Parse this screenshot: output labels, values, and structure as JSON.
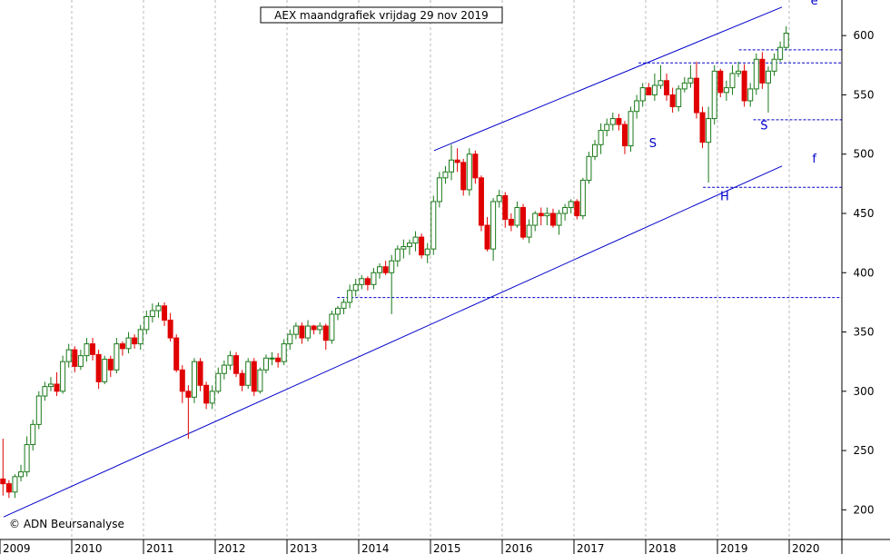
{
  "chart_data": {
    "type": "candlestick",
    "title": "AEX maandgrafiek vrijdag 29 nov 2019",
    "credit": "© ADN Beursanalyse",
    "x_tick_labels": [
      "2009",
      "2010",
      "2011",
      "2012",
      "2013",
      "2014",
      "2015",
      "2016",
      "2017",
      "2018",
      "2019",
      "2020"
    ],
    "y_tick_labels": [
      200,
      250,
      300,
      350,
      400,
      450,
      500,
      550,
      600
    ],
    "ylim": [
      175,
      630
    ],
    "x_start_year": 2009,
    "grid": "vertical dashed at year boundaries",
    "up_color": "#1a7a1a",
    "down_color": "#e00000",
    "line_color": "#0000cc",
    "months": {
      "open": [
        226,
        222,
        215,
        228,
        232,
        255,
        272,
        296,
        304,
        306,
        300,
        325,
        335,
        321,
        330,
        340,
        331,
        308,
        327,
        318,
        340,
        336,
        345,
        340,
        352,
        363,
        368,
        372,
        360,
        345,
        318,
        300,
        295,
        325,
        305,
        290,
        300,
        315,
        322,
        330,
        315,
        305,
        325,
        300,
        318,
        328,
        328,
        325,
        340,
        348,
        355,
        345,
        355,
        352,
        355,
        343,
        365,
        370,
        375,
        385,
        390,
        395,
        390,
        400,
        405,
        400,
        410,
        420,
        422,
        425,
        430,
        415,
        420,
        460,
        480,
        485,
        495,
        493,
        470,
        500,
        480,
        440,
        420,
        460,
        465,
        445,
        440,
        455,
        430,
        440,
        450,
        448,
        450,
        440,
        450,
        455,
        460,
        448,
        478,
        498,
        508,
        520,
        525,
        530,
        525,
        507,
        536,
        545,
        556,
        550,
        558,
        562,
        550,
        540,
        555,
        560,
        564,
        535,
        510,
        530,
        570,
        552,
        556,
        568,
        570,
        545,
        555,
        580,
        560,
        570,
        580,
        590
      ],
      "close": [
        222,
        215,
        228,
        232,
        255,
        272,
        296,
        304,
        306,
        300,
        325,
        335,
        321,
        330,
        340,
        331,
        308,
        327,
        318,
        340,
        336,
        345,
        340,
        352,
        363,
        368,
        372,
        360,
        345,
        318,
        300,
        295,
        325,
        305,
        290,
        300,
        315,
        322,
        330,
        315,
        305,
        325,
        300,
        318,
        328,
        328,
        325,
        340,
        348,
        355,
        345,
        355,
        352,
        355,
        343,
        365,
        370,
        375,
        385,
        390,
        395,
        390,
        400,
        405,
        400,
        410,
        420,
        422,
        425,
        430,
        415,
        420,
        460,
        480,
        485,
        495,
        493,
        470,
        500,
        480,
        440,
        420,
        460,
        465,
        445,
        440,
        455,
        430,
        440,
        450,
        448,
        450,
        440,
        450,
        455,
        460,
        448,
        478,
        498,
        508,
        520,
        525,
        530,
        525,
        507,
        536,
        545,
        556,
        550,
        558,
        562,
        550,
        540,
        555,
        560,
        564,
        535,
        510,
        530,
        570,
        552,
        556,
        568,
        570,
        545,
        555,
        580,
        560,
        570,
        580,
        590,
        602
      ],
      "high": [
        260,
        225,
        230,
        238,
        262,
        276,
        300,
        308,
        312,
        316,
        330,
        340,
        338,
        335,
        345,
        345,
        335,
        330,
        330,
        345,
        342,
        350,
        348,
        356,
        368,
        374,
        375,
        375,
        366,
        348,
        322,
        305,
        328,
        328,
        308,
        305,
        320,
        326,
        334,
        333,
        318,
        328,
        328,
        320,
        331,
        333,
        332,
        344,
        352,
        358,
        358,
        360,
        356,
        358,
        357,
        368,
        372,
        378,
        390,
        395,
        398,
        397,
        404,
        408,
        410,
        415,
        423,
        428,
        428,
        435,
        433,
        425,
        465,
        485,
        490,
        508,
        505,
        496,
        505,
        503,
        482,
        447,
        463,
        470,
        468,
        450,
        460,
        458,
        445,
        452,
        455,
        455,
        454,
        453,
        458,
        462,
        462,
        480,
        502,
        512,
        526,
        530,
        535,
        534,
        528,
        540,
        550,
        560,
        560,
        568,
        575,
        568,
        556,
        558,
        565,
        575,
        578,
        540,
        540,
        575,
        572,
        562,
        575,
        578,
        576,
        560,
        585,
        586,
        574,
        585,
        595,
        608
      ],
      "low": [
        212,
        210,
        210,
        224,
        228,
        250,
        268,
        292,
        300,
        296,
        298,
        320,
        316,
        318,
        325,
        326,
        302,
        306,
        312,
        315,
        330,
        332,
        336,
        335,
        348,
        358,
        362,
        355,
        342,
        316,
        290,
        260,
        290,
        300,
        285,
        285,
        298,
        310,
        318,
        312,
        300,
        302,
        296,
        298,
        315,
        322,
        320,
        322,
        335,
        344,
        340,
        342,
        348,
        348,
        335,
        340,
        360,
        365,
        370,
        380,
        386,
        385,
        386,
        395,
        398,
        365,
        405,
        412,
        415,
        418,
        412,
        408,
        415,
        455,
        475,
        478,
        485,
        465,
        465,
        475,
        435,
        418,
        410,
        455,
        438,
        435,
        438,
        428,
        425,
        435,
        440,
        440,
        438,
        432,
        444,
        450,
        445,
        445,
        475,
        495,
        500,
        515,
        520,
        520,
        500,
        502,
        530,
        540,
        550,
        545,
        555,
        545,
        535,
        536,
        552,
        556,
        530,
        505,
        476,
        525,
        548,
        545,
        550,
        565,
        540,
        540,
        550,
        555,
        535,
        566,
        578,
        588
      ]
    },
    "trendlines": [
      {
        "name": "e",
        "points": [
          [
            2015.05,
            503
          ],
          [
            2019.9,
            624
          ]
        ]
      },
      {
        "name": "f",
        "points": [
          [
            2009.05,
            194
          ],
          [
            2019.9,
            490
          ]
        ]
      }
    ],
    "horizontal_levels": [
      {
        "value": 379,
        "x_from": 2013.7
      },
      {
        "value": 472,
        "x_from": 2018.8
      },
      {
        "value": 529,
        "x_from": 2019.5
      },
      {
        "value": 577,
        "x_from": 2017.9
      },
      {
        "value": 588,
        "x_from": 2019.3
      }
    ],
    "annotations": [
      {
        "text": "S",
        "x": 2018.1,
        "y": 506
      },
      {
        "text": "H",
        "x": 2019.1,
        "y": 461
      },
      {
        "text": "S",
        "x": 2019.65,
        "y": 521
      },
      {
        "text": "e",
        "x": 2020.35,
        "y": 626
      },
      {
        "text": "f",
        "x": 2020.35,
        "y": 493
      }
    ]
  }
}
